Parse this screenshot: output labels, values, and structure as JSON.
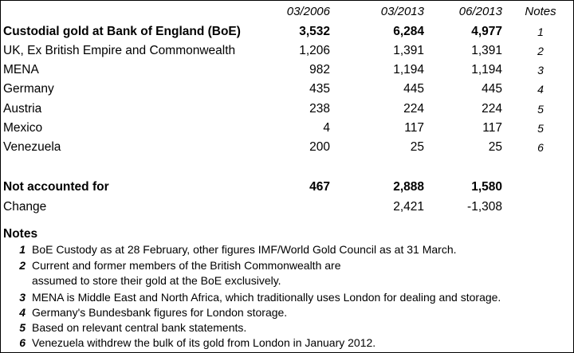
{
  "header": {
    "col1": "03/2006",
    "col2": "03/2013",
    "col3": "06/2013",
    "notes": "Notes"
  },
  "rows": [
    {
      "label": "Custodial gold at Bank of England (BoE)",
      "v1": "3,532",
      "v2": "6,284",
      "v3": "4,977",
      "note": "1"
    },
    {
      "label": "UK, Ex British Empire and Commonwealth",
      "v1": "1,206",
      "v2": "1,391",
      "v3": "1,391",
      "note": "2"
    },
    {
      "label": "MENA",
      "v1": "982",
      "v2": "1,194",
      "v3": "1,194",
      "note": "3"
    },
    {
      "label": "Germany",
      "v1": "435",
      "v2": "445",
      "v3": "445",
      "note": "4"
    },
    {
      "label": "Austria",
      "v1": "238",
      "v2": "224",
      "v3": "224",
      "note": "5"
    },
    {
      "label": "Mexico",
      "v1": "4",
      "v2": "117",
      "v3": "117",
      "note": "5"
    },
    {
      "label": "Venezuela",
      "v1": "200",
      "v2": "25",
      "v3": "25",
      "note": "6"
    }
  ],
  "not_accounted": {
    "label": "Not accounted for",
    "v1": "467",
    "v2": "2,888",
    "v3": "1,580"
  },
  "change": {
    "label": "Change",
    "v2": "2,421",
    "v3": "-1,308"
  },
  "notes_title": "Notes",
  "footnotes": [
    {
      "num": "1",
      "text": "BoE Custody as at 28 February, other figures IMF/World Gold Council as at 31 March."
    },
    {
      "num": "2",
      "text": "Current and former members of the British Commonwealth are"
    },
    {
      "num": "",
      "text": "assumed to store their gold at the BoE exclusively."
    },
    {
      "num": "3",
      "text": "MENA is Middle East and North Africa, which traditionally uses London for dealing and storage."
    },
    {
      "num": "4",
      "text": "Germany's Bundesbank figures for London storage."
    },
    {
      "num": "5",
      "text": "Based on relevant central bank statements."
    },
    {
      "num": "6",
      "text": "Venezuela withdrew the bulk of its gold from London in January 2012."
    }
  ]
}
